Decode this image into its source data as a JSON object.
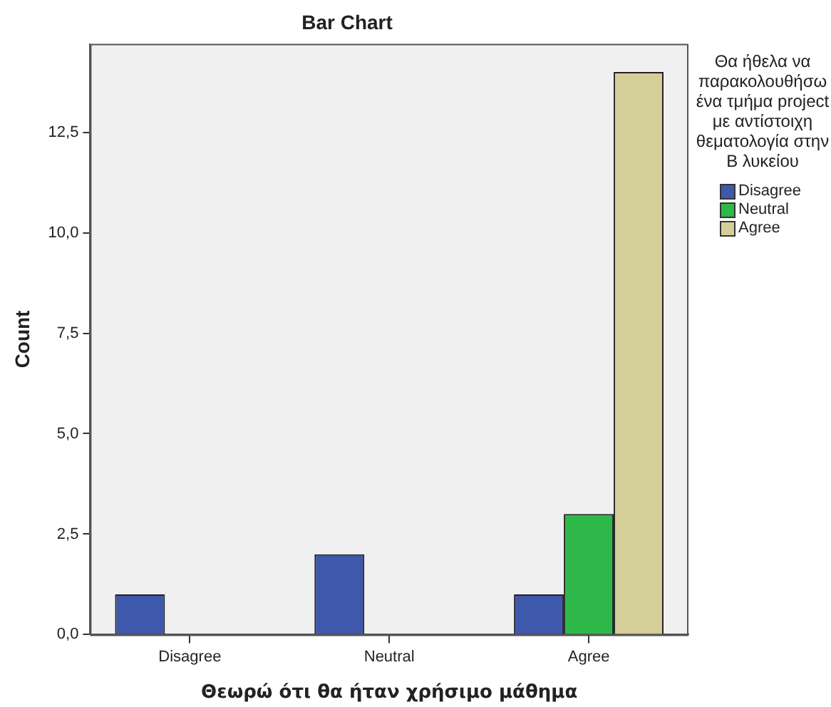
{
  "chart_data": {
    "type": "bar",
    "title": "Bar Chart",
    "xlabel": "Θεωρώ ότι θα ήταν χρήσιμο μάθημα",
    "ylabel": "Count",
    "legend_title": "Θα ήθελα να παρακολουθήσω ένα τμήμα project με αντίστοιχη θεματολογία στην Β λυκείου",
    "categories": [
      "Disagree",
      "Neutral",
      "Agree"
    ],
    "series": [
      {
        "name": "Disagree",
        "color": "#3e58ac",
        "values": [
          1,
          2,
          1
        ]
      },
      {
        "name": "Neutral",
        "color": "#2fb84a",
        "values": [
          null,
          null,
          3
        ]
      },
      {
        "name": "Agree",
        "color": "#d4cf98",
        "values": [
          null,
          null,
          14
        ]
      }
    ],
    "ylim": [
      0,
      14.7
    ],
    "yticks": [
      {
        "value": 0,
        "label": "0,0"
      },
      {
        "value": 2.5,
        "label": "2,5"
      },
      {
        "value": 5,
        "label": "5,0"
      },
      {
        "value": 7.5,
        "label": "7,5"
      },
      {
        "value": 10,
        "label": "10,0"
      },
      {
        "value": 12.5,
        "label": "12,5"
      }
    ],
    "grid": false,
    "legend": "top right"
  }
}
